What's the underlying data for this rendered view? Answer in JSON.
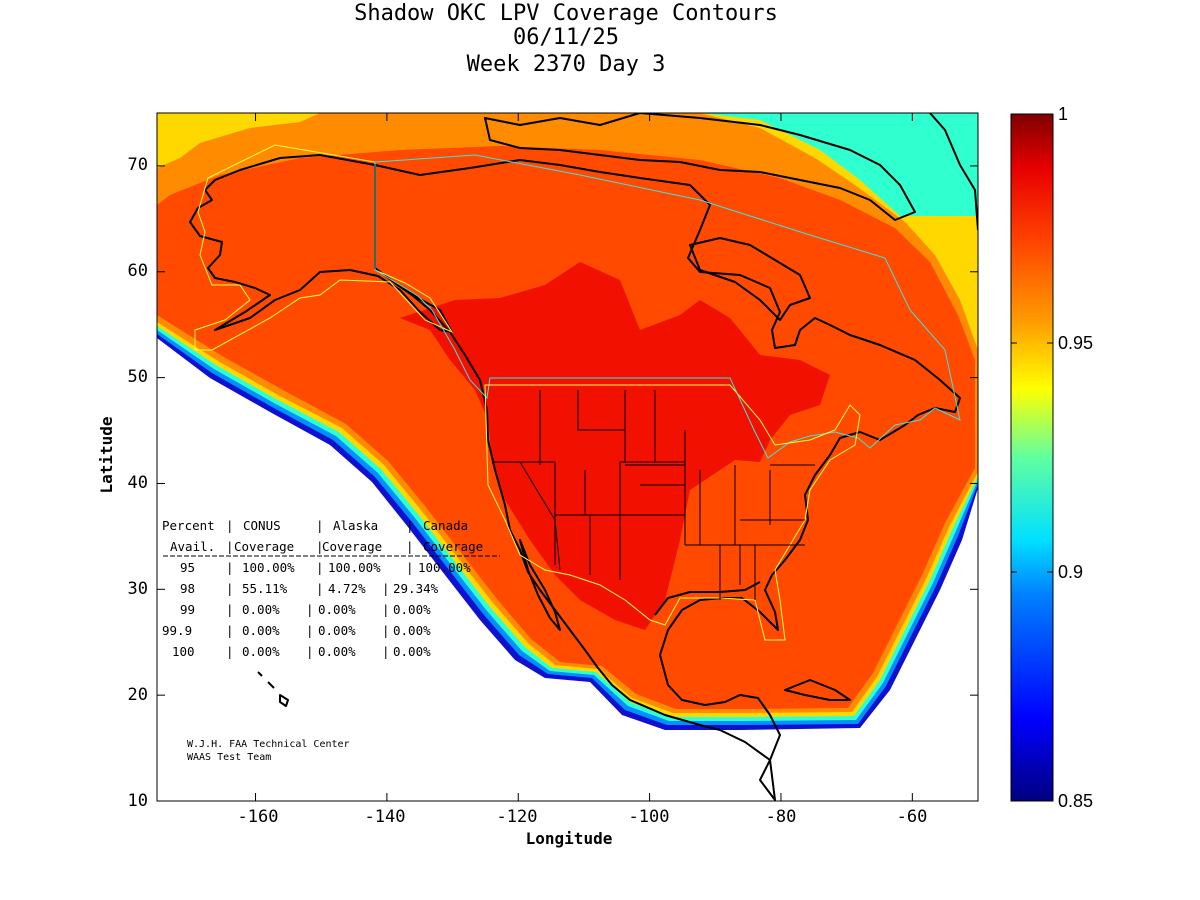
{
  "title": {
    "line1": "Shadow OKC LPV Coverage Contours",
    "line2": "06/11/25",
    "line3": "Week 2370 Day 3"
  },
  "axes": {
    "xlabel": "Longitude",
    "ylabel": "Latitude",
    "xlim": [
      -175,
      -50
    ],
    "ylim": [
      10,
      75
    ],
    "xticks": [
      "-160",
      "-140",
      "-120",
      "-100",
      "-80",
      "-60"
    ],
    "yticks": [
      "10",
      "20",
      "30",
      "40",
      "50",
      "60",
      "70"
    ]
  },
  "colorbar": {
    "range": [
      0.85,
      1
    ],
    "ticks": [
      "0.85",
      "0.9",
      "0.95",
      "1"
    ]
  },
  "colors": {
    "ocean_background": "#ffffff",
    "high_coverage": "#ff4a00",
    "very_high": "#f21000",
    "edge_orange": "#ff8c00",
    "gradient_low": "#00007f",
    "gradient_mid": "#00ffff",
    "gradient_yellow": "#ffff00",
    "gradient_high": "#7f0000"
  },
  "table": {
    "header1": [
      "Percent",
      "CONUS",
      "Alaska",
      "Canada"
    ],
    "header2": [
      "Avail.",
      "Coverage",
      "Coverage",
      "Coverage"
    ],
    "rows": [
      {
        "pct": "95",
        "conus": "100.00%",
        "alaska": "100.00%",
        "canada": "100.00%"
      },
      {
        "pct": "98",
        "conus": "55.11%",
        "alaska": "4.72%",
        "canada": "29.34%"
      },
      {
        "pct": "99",
        "conus": "0.00%",
        "alaska": "0.00%",
        "canada": "0.00%"
      },
      {
        "pct": "99.9",
        "conus": "0.00%",
        "alaska": "0.00%",
        "canada": "0.00%"
      },
      {
        "pct": "100",
        "conus": "0.00%",
        "alaska": "0.00%",
        "canada": "0.00%"
      }
    ]
  },
  "credit": {
    "line1": "W.J.H. FAA Technical Center",
    "line2": "WAAS Test Team"
  }
}
